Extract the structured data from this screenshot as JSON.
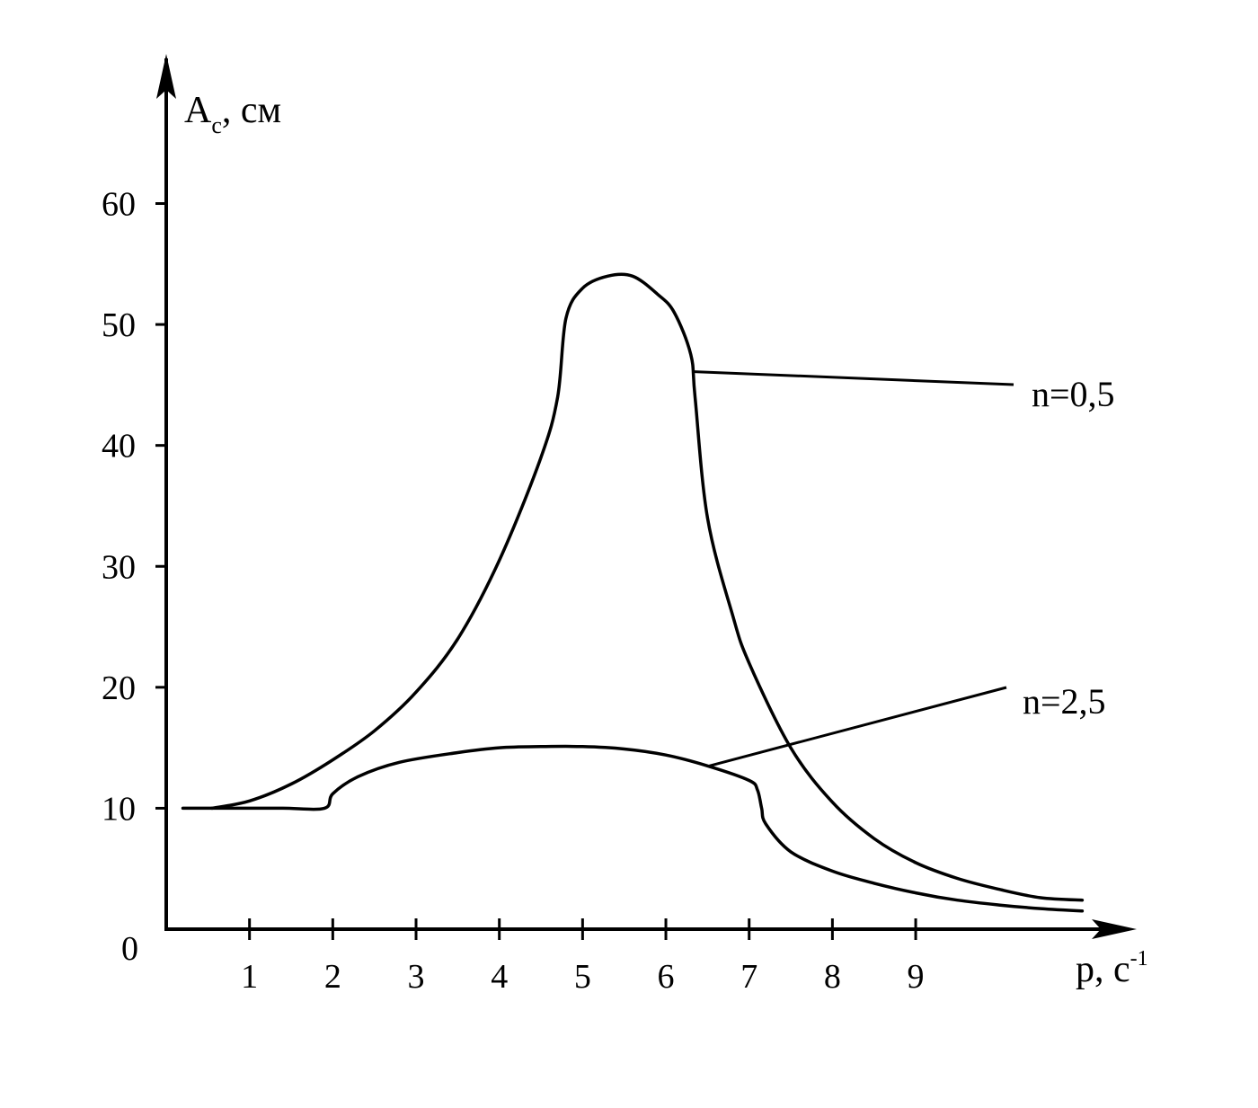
{
  "chart_data": {
    "type": "line",
    "ylabel": {
      "main": "A",
      "sub": "c",
      "rest": ", см"
    },
    "xlabel": {
      "main": "p, c",
      "sup": "-1"
    },
    "origin_label": "0",
    "xticks": [
      "1",
      "2",
      "3",
      "4",
      "5",
      "6",
      "7",
      "8",
      "9"
    ],
    "yticks": [
      "10",
      "20",
      "30",
      "40",
      "50",
      "60"
    ],
    "xlim": [
      0,
      11.6
    ],
    "ylim": [
      0,
      72
    ],
    "grid": false,
    "series": [
      {
        "name": "n=0,5",
        "x": [
          0.55,
          1.0,
          1.5,
          2.0,
          2.5,
          3.0,
          3.5,
          4.0,
          4.5,
          4.7,
          4.8,
          5.0,
          5.3,
          5.6,
          5.9,
          6.1,
          6.3,
          6.35,
          6.5,
          6.8,
          7.0,
          7.5,
          8.0,
          8.5,
          9.0,
          9.5,
          10.0,
          10.5,
          11.0
        ],
        "y": [
          10,
          10.6,
          12,
          14,
          16.4,
          19.6,
          24,
          30.5,
          39,
          44,
          50.5,
          53,
          54,
          54,
          52.5,
          51,
          47.5,
          44,
          34,
          26,
          22,
          15,
          10.5,
          7.5,
          5.5,
          4.2,
          3.3,
          2.6,
          2.4
        ]
      },
      {
        "name": "n=2,5",
        "x": [
          0.2,
          0.8,
          1.4,
          1.9,
          2.0,
          2.3,
          2.8,
          3.5,
          4.0,
          4.5,
          5.0,
          5.5,
          6.0,
          6.5,
          7.0,
          7.1,
          7.15,
          7.2,
          7.5,
          8.0,
          8.5,
          9.0,
          9.5,
          10.0,
          10.5,
          11.0
        ],
        "y": [
          10,
          10,
          10,
          10,
          11.2,
          12.6,
          13.8,
          14.6,
          15,
          15.1,
          15.1,
          14.9,
          14.4,
          13.5,
          12.3,
          11.5,
          10,
          8.7,
          6.4,
          4.8,
          3.8,
          3.0,
          2.4,
          2.0,
          1.7,
          1.5
        ]
      }
    ]
  }
}
